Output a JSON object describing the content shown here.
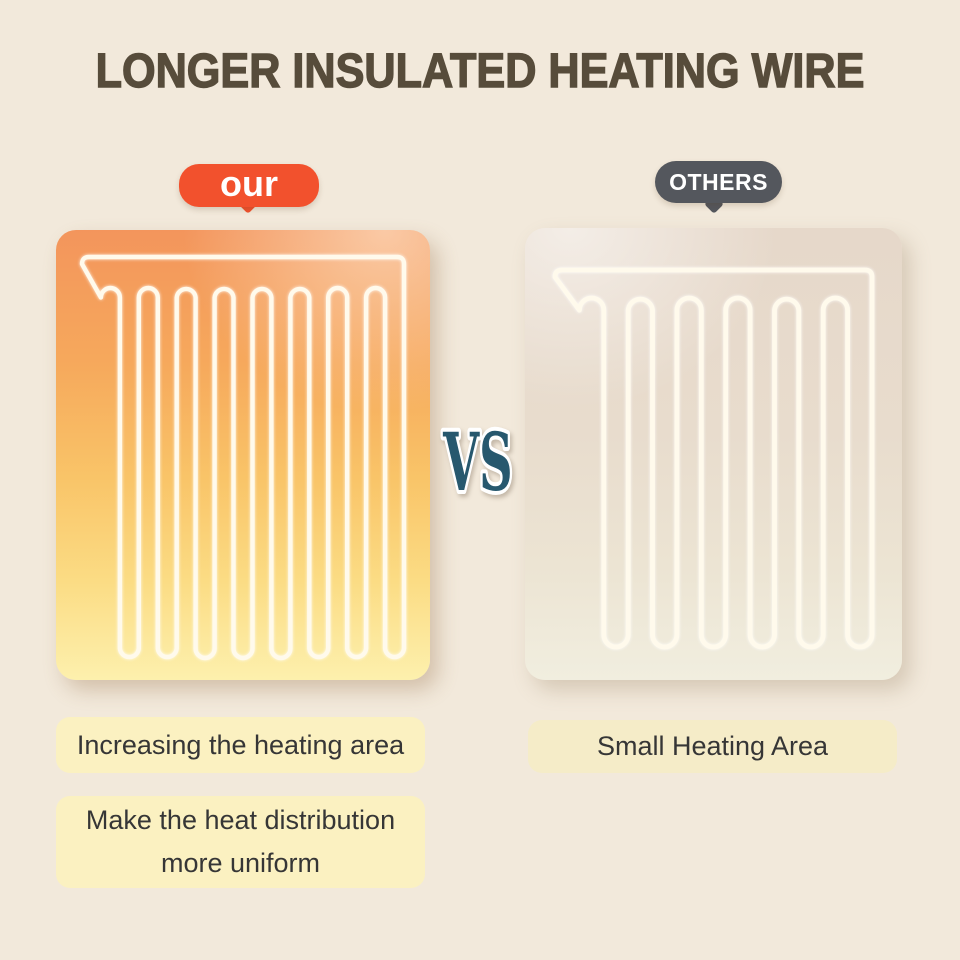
{
  "title": "LONGER INSULATED HEATING WIRE",
  "vs_label": "VS",
  "panels": {
    "left": {
      "badge_label": "our",
      "wire_loops": 8,
      "caption_1": "Increasing the heating area",
      "caption_2_line_1": "Make the heat distribution",
      "caption_2_line_2": "more uniform"
    },
    "right": {
      "badge_label": "OTHERS",
      "wire_loops": 6,
      "caption_1": "Small Heating Area"
    }
  },
  "colors": {
    "background": "#f2e9db",
    "title-text": "#574c3b",
    "our-badge": "#f2512d",
    "others-badge": "#54575d",
    "vs-fill": "#27586e",
    "vs-outline": "#ffffff",
    "wire": "#fffaec",
    "caption-bg-left": "#fbf1c1",
    "caption-bg-right": "#f5ecc8",
    "caption-text": "#363636"
  }
}
